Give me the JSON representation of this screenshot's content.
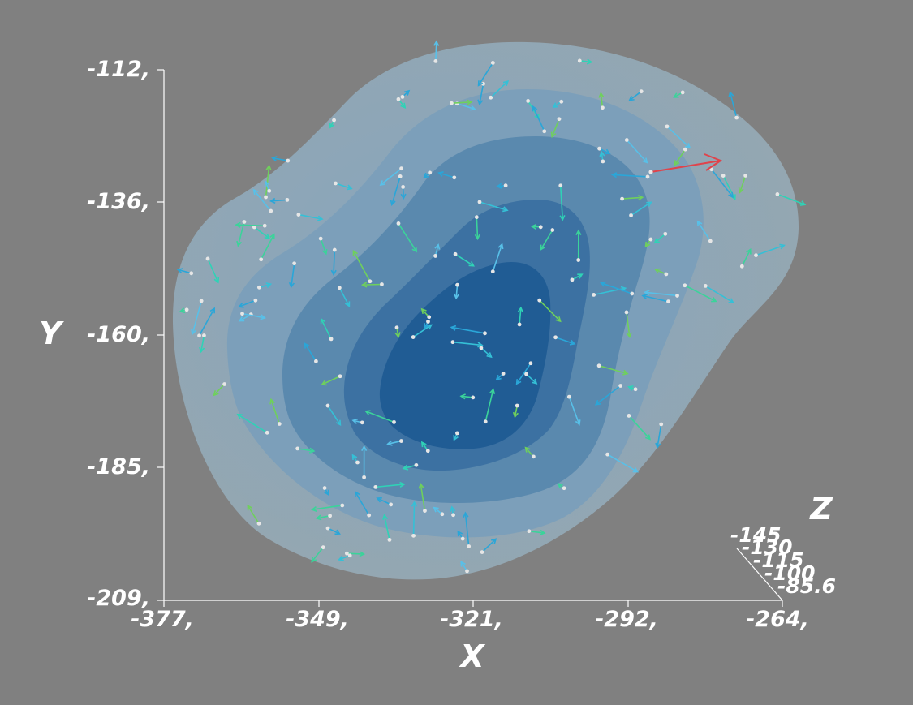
{
  "chart_data": {
    "type": "3d-isosurface-vector-field",
    "axes": {
      "x": {
        "title": "X",
        "range": [
          -377,
          -264
        ],
        "ticks": [
          "-377,",
          "-349,",
          "-321,",
          "-292,",
          "-264,"
        ]
      },
      "y": {
        "title": "Y",
        "range": [
          -209,
          -112
        ],
        "ticks": [
          "-112,",
          "-136,",
          "-160,",
          "-185,",
          "-209,"
        ]
      },
      "z": {
        "title": "Z",
        "range": [
          -145,
          -85.6
        ],
        "ticks": [
          "-145",
          "-130",
          "-115",
          "-100",
          "-85.6"
        ]
      }
    },
    "isosurface_levels": 5,
    "colors": {
      "background": "#808080",
      "surface_outer": "#93a7b2",
      "surface_inner": "#1f5f96",
      "vector_low": "#2aa6d8",
      "vector_mid": "#2fd2b6",
      "vector_high": "#e0434b"
    }
  }
}
